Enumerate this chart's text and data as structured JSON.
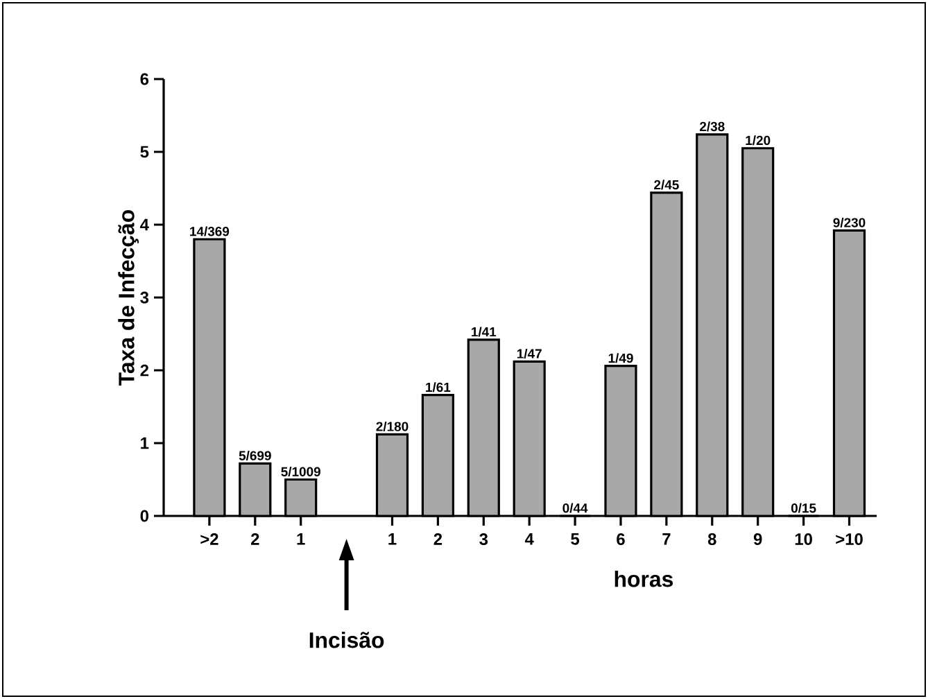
{
  "chart_data": {
    "type": "bar",
    "ylabel": "Taxa de Infecção",
    "xlabel": "horas",
    "categories": [
      ">2",
      "2",
      "1",
      null,
      "1",
      "2",
      "3",
      "4",
      "5",
      "6",
      "7",
      "8",
      "9",
      "10",
      ">10"
    ],
    "values": [
      3.8,
      0.72,
      0.5,
      null,
      1.12,
      1.66,
      2.42,
      2.12,
      0,
      2.06,
      4.44,
      5.24,
      5.05,
      0,
      3.92
    ],
    "value_labels": [
      "14/369",
      "5/699",
      "5/1009",
      null,
      "2/180",
      "1/61",
      "1/41",
      "1/47",
      "0/44",
      "1/49",
      "2/45",
      "2/38",
      "1/20",
      "0/15",
      "9/230"
    ],
    "color": "#a8a8a8",
    "ylim": [
      0,
      6
    ],
    "yticks": [
      0,
      1,
      2,
      3,
      4,
      5,
      6
    ],
    "annotations": [
      "Incisão"
    ],
    "grid": false
  }
}
